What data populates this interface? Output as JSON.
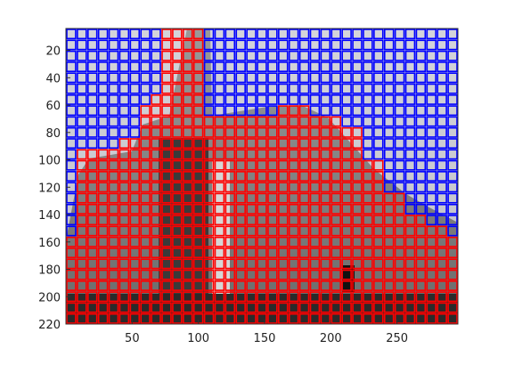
{
  "figure": {
    "background": "#ffffff",
    "image_tint": "#8a8a8a",
    "sky_color": "#c8c8ce",
    "grid_colors": {
      "background_cells": "#0000ff",
      "foreground_cells": "#ff0000"
    }
  },
  "axes": {
    "x_range": [
      0,
      296
    ],
    "y_range": [
      4,
      220
    ],
    "y_direction": "reverse",
    "x_ticks": [
      50,
      100,
      150,
      200,
      250
    ],
    "y_ticks": [
      20,
      40,
      60,
      80,
      100,
      120,
      140,
      160,
      180,
      200,
      220
    ],
    "cell_size": 8
  },
  "regions": {
    "foreground_columns": [
      {
        "x_from": 0,
        "x_to": 8,
        "top": 160
      },
      {
        "x_from": 8,
        "x_to": 16,
        "top": 96
      },
      {
        "x_from": 16,
        "x_to": 40,
        "top": 92
      },
      {
        "x_from": 40,
        "x_to": 56,
        "top": 84
      },
      {
        "x_from": 56,
        "x_to": 64,
        "top": 60
      },
      {
        "x_from": 64,
        "x_to": 72,
        "top": 52
      },
      {
        "x_from": 72,
        "x_to": 104,
        "top": 4
      },
      {
        "x_from": 104,
        "x_to": 160,
        "top": 68
      },
      {
        "x_from": 160,
        "x_to": 184,
        "top": 60
      },
      {
        "x_from": 184,
        "x_to": 208,
        "top": 68
      },
      {
        "x_from": 208,
        "x_to": 224,
        "top": 76
      },
      {
        "x_from": 224,
        "x_to": 240,
        "top": 100
      },
      {
        "x_from": 240,
        "x_to": 256,
        "top": 124
      },
      {
        "x_from": 256,
        "x_to": 272,
        "top": 140
      },
      {
        "x_from": 272,
        "x_to": 288,
        "top": 150
      },
      {
        "x_from": 288,
        "x_to": 296,
        "top": 160
      }
    ]
  }
}
